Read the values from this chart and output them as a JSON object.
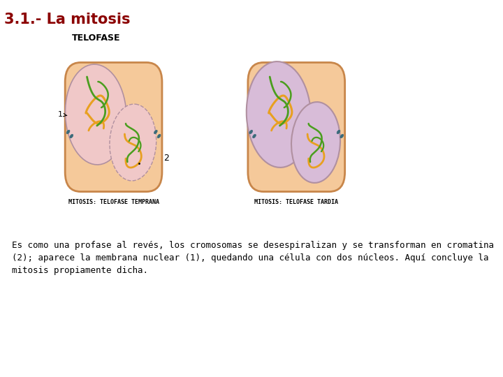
{
  "title": "3.1.- La mitosis",
  "subtitle": "TELOFASE",
  "title_color": "#8b0000",
  "subtitle_color": "#000000",
  "bg_color": "#ffffff",
  "cell_fill": "#f5c99a",
  "cell_edge": "#c8864a",
  "nucleus_fill_left": "#f0c8c8",
  "nucleus_fill_right": "#d8bcd8",
  "nucleus_edge": "#b090a0",
  "chromosome_green": "#4a9e1e",
  "chromosome_orange": "#e8a020",
  "centriole_color": "#3a6a7a",
  "label1_caption": "MITOSIS: TELOFASE TEMPRANA",
  "label2_caption": "MITOSIS: TELOFASE TARDIA",
  "description": "Es como una profase al revés, los cromosomas se desespiralizan y se transforman en cromatina\n(2); aparece la membrana nuclear (1), quedando una célula con dos núcleos. Aquí concluye la\nmitosis propiamente dicha."
}
